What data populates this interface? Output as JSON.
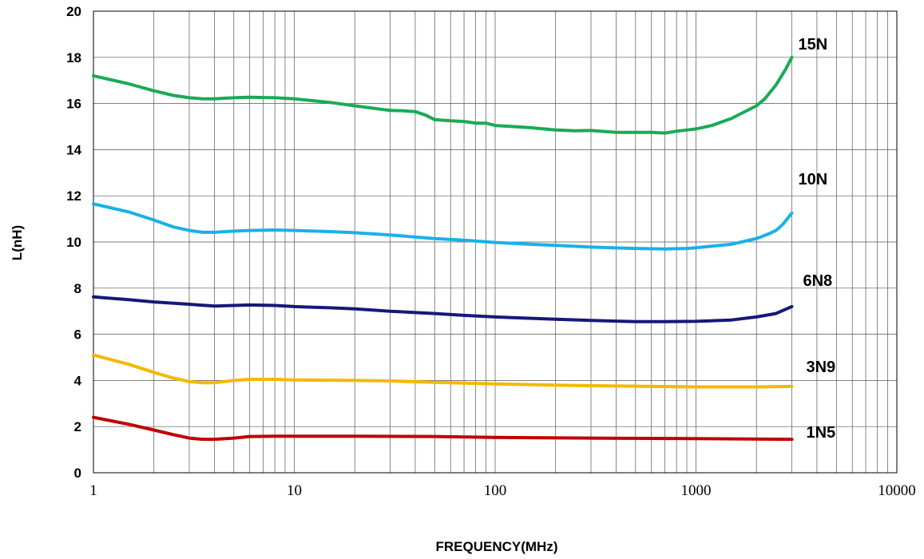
{
  "chart_data": {
    "type": "line",
    "title": "",
    "xlabel": "FREQUENCY(MHz)",
    "ylabel": "L(nH)",
    "xscale": "log",
    "xlim": [
      1,
      10000
    ],
    "ylim": [
      0,
      20
    ],
    "xticks": [
      "1",
      "10",
      "100",
      "1000",
      "10000"
    ],
    "yticks": [
      "0",
      "2",
      "4",
      "6",
      "8",
      "10",
      "12",
      "14",
      "16",
      "18",
      "20"
    ],
    "grid": true,
    "series": [
      {
        "name": "15N",
        "color": "#1aaa55",
        "points": [
          [
            1,
            17.2
          ],
          [
            1.5,
            16.85
          ],
          [
            2,
            16.55
          ],
          [
            2.5,
            16.35
          ],
          [
            3,
            16.25
          ],
          [
            3.5,
            16.2
          ],
          [
            4,
            16.2
          ],
          [
            5,
            16.25
          ],
          [
            6,
            16.27
          ],
          [
            7,
            16.26
          ],
          [
            8,
            16.25
          ],
          [
            10,
            16.2
          ],
          [
            15,
            16.05
          ],
          [
            20,
            15.9
          ],
          [
            30,
            15.7
          ],
          [
            35,
            15.68
          ],
          [
            40,
            15.65
          ],
          [
            45,
            15.5
          ],
          [
            50,
            15.3
          ],
          [
            60,
            15.25
          ],
          [
            70,
            15.22
          ],
          [
            80,
            15.15
          ],
          [
            90,
            15.15
          ],
          [
            100,
            15.05
          ],
          [
            150,
            14.95
          ],
          [
            200,
            14.85
          ],
          [
            250,
            14.82
          ],
          [
            300,
            14.83
          ],
          [
            400,
            14.75
          ],
          [
            500,
            14.75
          ],
          [
            600,
            14.75
          ],
          [
            700,
            14.72
          ],
          [
            800,
            14.8
          ],
          [
            900,
            14.85
          ],
          [
            1000,
            14.9
          ],
          [
            1200,
            15.05
          ],
          [
            1500,
            15.35
          ],
          [
            2000,
            15.9
          ],
          [
            2200,
            16.2
          ],
          [
            2500,
            16.8
          ],
          [
            2800,
            17.5
          ],
          [
            3000,
            18.0
          ]
        ]
      },
      {
        "name": "10N",
        "color": "#1ab0ea",
        "points": [
          [
            1,
            11.65
          ],
          [
            1.5,
            11.3
          ],
          [
            2,
            10.95
          ],
          [
            2.5,
            10.65
          ],
          [
            3,
            10.5
          ],
          [
            3.5,
            10.42
          ],
          [
            4,
            10.42
          ],
          [
            5,
            10.47
          ],
          [
            6,
            10.5
          ],
          [
            8,
            10.52
          ],
          [
            10,
            10.5
          ],
          [
            15,
            10.45
          ],
          [
            20,
            10.4
          ],
          [
            30,
            10.3
          ],
          [
            50,
            10.15
          ],
          [
            70,
            10.08
          ],
          [
            100,
            9.98
          ],
          [
            150,
            9.9
          ],
          [
            200,
            9.85
          ],
          [
            300,
            9.78
          ],
          [
            500,
            9.72
          ],
          [
            700,
            9.7
          ],
          [
            900,
            9.72
          ],
          [
            1000,
            9.75
          ],
          [
            1500,
            9.9
          ],
          [
            2000,
            10.15
          ],
          [
            2300,
            10.35
          ],
          [
            2500,
            10.5
          ],
          [
            2700,
            10.75
          ],
          [
            3000,
            11.25
          ]
        ]
      },
      {
        "name": "6N8",
        "color": "#16187a",
        "points": [
          [
            1,
            7.62
          ],
          [
            1.5,
            7.5
          ],
          [
            2,
            7.4
          ],
          [
            3,
            7.3
          ],
          [
            4,
            7.22
          ],
          [
            5,
            7.25
          ],
          [
            6,
            7.27
          ],
          [
            8,
            7.25
          ],
          [
            10,
            7.2
          ],
          [
            15,
            7.15
          ],
          [
            20,
            7.1
          ],
          [
            30,
            7.0
          ],
          [
            50,
            6.9
          ],
          [
            70,
            6.82
          ],
          [
            100,
            6.75
          ],
          [
            200,
            6.65
          ],
          [
            300,
            6.6
          ],
          [
            500,
            6.55
          ],
          [
            700,
            6.55
          ],
          [
            1000,
            6.56
          ],
          [
            1500,
            6.62
          ],
          [
            2000,
            6.75
          ],
          [
            2500,
            6.9
          ],
          [
            3000,
            7.2
          ]
        ]
      },
      {
        "name": "3N9",
        "color": "#f5b800",
        "points": [
          [
            1,
            5.1
          ],
          [
            1.5,
            4.7
          ],
          [
            2,
            4.35
          ],
          [
            2.5,
            4.1
          ],
          [
            3,
            3.95
          ],
          [
            3.5,
            3.9
          ],
          [
            4,
            3.9
          ],
          [
            5,
            4.0
          ],
          [
            6,
            4.05
          ],
          [
            8,
            4.05
          ],
          [
            10,
            4.02
          ],
          [
            20,
            4.0
          ],
          [
            30,
            3.98
          ],
          [
            50,
            3.92
          ],
          [
            100,
            3.85
          ],
          [
            200,
            3.8
          ],
          [
            300,
            3.77
          ],
          [
            500,
            3.75
          ],
          [
            1000,
            3.72
          ],
          [
            2000,
            3.72
          ],
          [
            3000,
            3.74
          ]
        ]
      },
      {
        "name": "1N5",
        "color": "#c00000",
        "points": [
          [
            1,
            2.4
          ],
          [
            1.5,
            2.1
          ],
          [
            2,
            1.85
          ],
          [
            2.5,
            1.65
          ],
          [
            3,
            1.5
          ],
          [
            3.5,
            1.45
          ],
          [
            4,
            1.45
          ],
          [
            5,
            1.5
          ],
          [
            6,
            1.57
          ],
          [
            8,
            1.58
          ],
          [
            10,
            1.58
          ],
          [
            20,
            1.58
          ],
          [
            50,
            1.57
          ],
          [
            100,
            1.53
          ],
          [
            300,
            1.5
          ],
          [
            1000,
            1.48
          ],
          [
            3000,
            1.45
          ]
        ]
      }
    ]
  }
}
